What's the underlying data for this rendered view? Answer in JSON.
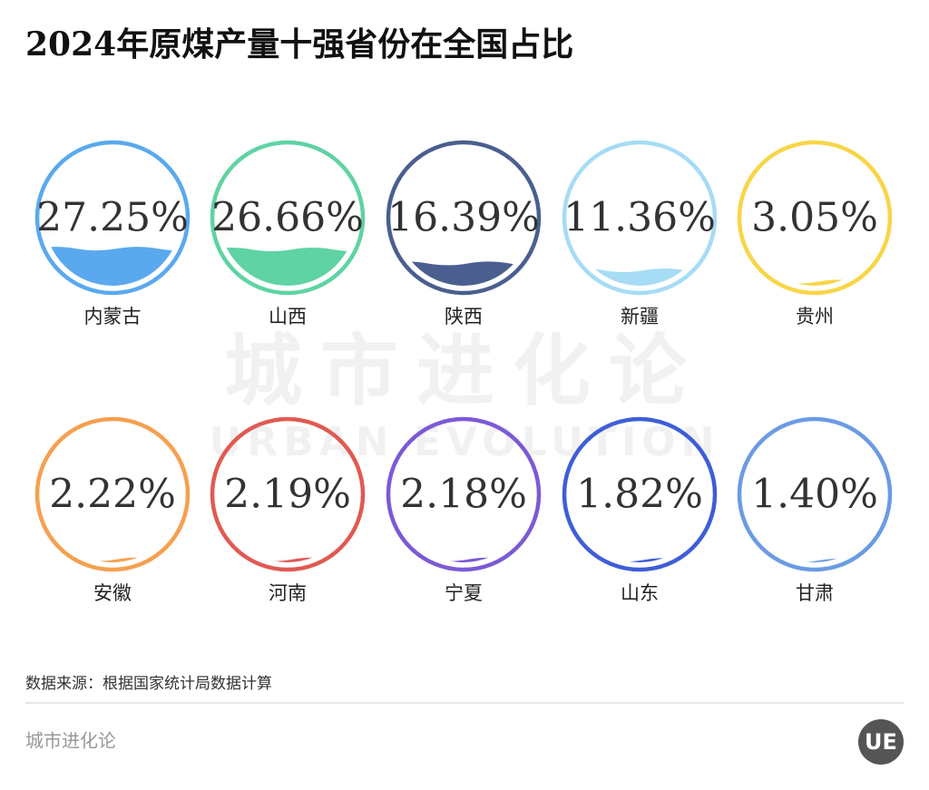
{
  "chart_data": {
    "type": "liquid",
    "title": "2024年原煤产量十强省份在全国占比",
    "categories": [
      "内蒙古",
      "山西",
      "陕西",
      "新疆",
      "贵州",
      "安徽",
      "河南",
      "宁夏",
      "山东",
      "甘肃"
    ],
    "values": [
      27.25,
      26.66,
      16.39,
      11.36,
      3.05,
      2.22,
      2.19,
      2.18,
      1.82,
      1.4
    ],
    "value_labels": [
      "27.25%",
      "26.66%",
      "16.39%",
      "11.36%",
      "3.05%",
      "2.22%",
      "2.19%",
      "2.18%",
      "1.82%",
      "1.40%"
    ],
    "colors": [
      "#5aa9ee",
      "#5fd3a3",
      "#4a5f8f",
      "#a6dcf5",
      "#f8d548",
      "#f5a04f",
      "#e05a52",
      "#7b5ad6",
      "#3e5ed6",
      "#6b9be3"
    ]
  },
  "watermark": {
    "title": "城市进化论",
    "subtitle": "URBAN EVOLUTION"
  },
  "source": "数据来源：根据国家统计局数据计算",
  "footer": {
    "brand": "城市进化论",
    "logo": "UE"
  }
}
